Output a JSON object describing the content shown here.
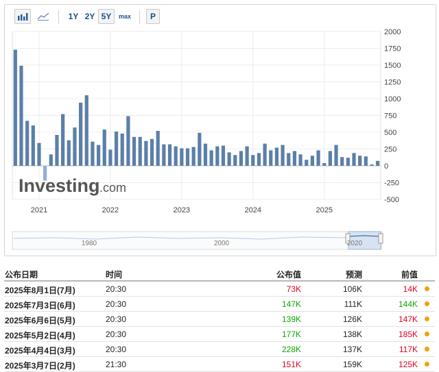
{
  "toolbar": {
    "buttons": [
      {
        "label": "1Y"
      },
      {
        "label": "2Y"
      },
      {
        "label": "5Y",
        "selected": true
      },
      {
        "label": "max"
      }
    ],
    "p_label": "P",
    "icons": [
      "bar-chart-icon",
      "area-chart-icon"
    ]
  },
  "watermark": {
    "brand": "Investing",
    "suffix": ".com"
  },
  "navigator": {
    "labels": [
      "1980",
      "2000",
      "2020"
    ]
  },
  "chart_data": {
    "type": "bar",
    "color": "#5b7fa8",
    "y_ticks": [
      2000,
      1750,
      1500,
      1250,
      1000,
      750,
      500,
      250,
      0,
      -250,
      -500
    ],
    "ylim": [
      -500,
      2000
    ],
    "x_tick_labels": [
      "2021",
      "2022",
      "2023",
      "2024",
      "2025"
    ],
    "grid": true,
    "values": [
      1730,
      1490,
      670,
      600,
      340,
      -220,
      170,
      460,
      770,
      380,
      570,
      940,
      1050,
      360,
      310,
      540,
      240,
      510,
      480,
      740,
      430,
      430,
      370,
      400,
      520,
      320,
      320,
      290,
      260,
      260,
      280,
      490,
      330,
      230,
      290,
      300,
      200,
      160,
      220,
      290,
      160,
      190,
      330,
      230,
      270,
      310,
      190,
      220,
      170,
      90,
      150,
      230,
      40,
      220,
      310,
      130,
      120,
      190,
      150,
      140,
      20,
      73
    ]
  },
  "table": {
    "headers": {
      "date": "公布日期",
      "time": "时间",
      "actual": "公布值",
      "forecast": "预测",
      "previous": "前值"
    },
    "rows": [
      {
        "date": "2025年8月1日(7月)",
        "time": "20:30",
        "actual": "73K",
        "actual_color": "red",
        "forecast": "106K",
        "previous": "14K",
        "previous_color": "red"
      },
      {
        "date": "2025年7月3日(6月)",
        "time": "20:30",
        "actual": "147K",
        "actual_color": "green",
        "forecast": "111K",
        "previous": "144K",
        "previous_color": "green"
      },
      {
        "date": "2025年6月6日(5月)",
        "time": "20:30",
        "actual": "139K",
        "actual_color": "green",
        "forecast": "126K",
        "previous": "147K",
        "previous_color": "red"
      },
      {
        "date": "2025年5月2日(4月)",
        "time": "20:30",
        "actual": "177K",
        "actual_color": "green",
        "forecast": "138K",
        "previous": "185K",
        "previous_color": "red"
      },
      {
        "date": "2025年4月4日(3月)",
        "time": "20:30",
        "actual": "228K",
        "actual_color": "green",
        "forecast": "137K",
        "previous": "117K",
        "previous_color": "red"
      },
      {
        "date": "2025年3月7日(2月)",
        "time": "21:30",
        "actual": "151K",
        "actual_color": "red",
        "forecast": "159K",
        "previous": "125K",
        "previous_color": "red"
      }
    ]
  }
}
